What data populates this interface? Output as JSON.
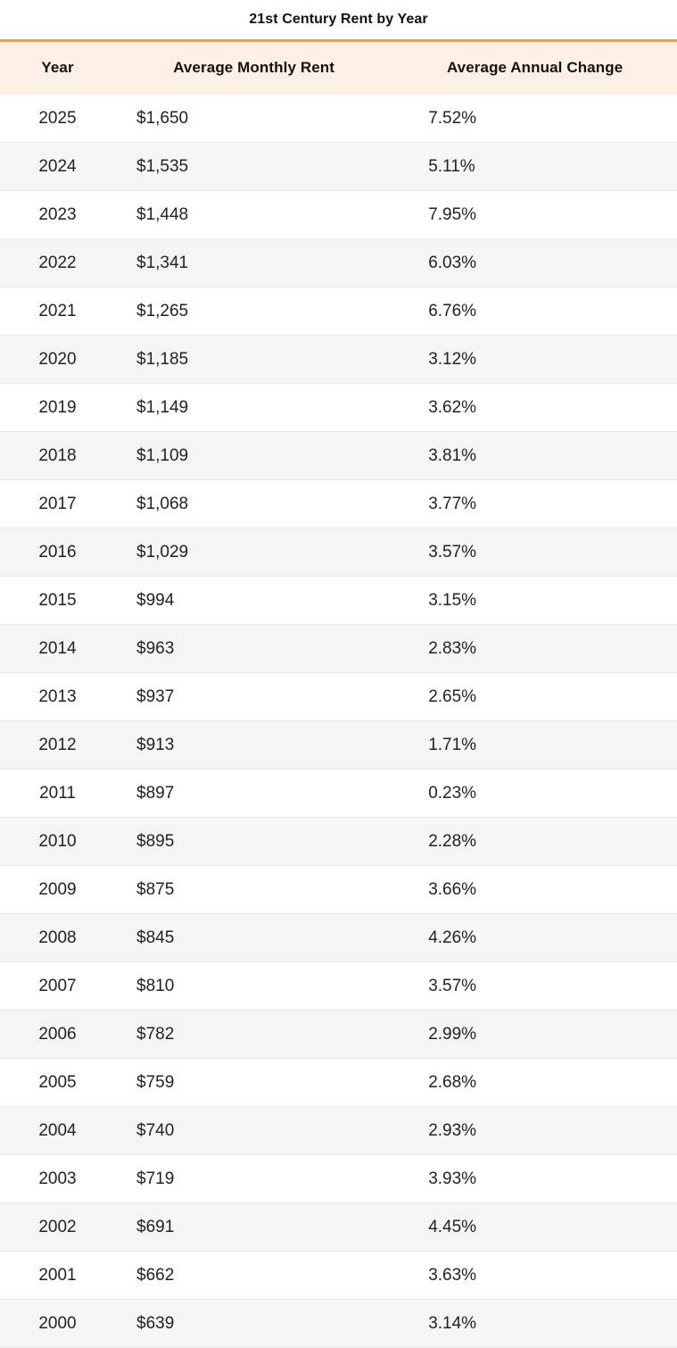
{
  "title": "21st Century Rent by Year",
  "chart_data": {
    "type": "table",
    "title": "21st Century Rent by Year",
    "columns": [
      "Year",
      "Average Monthly Rent",
      "Average Annual Change"
    ],
    "rows": [
      [
        "2025",
        "$1,650",
        "7.52%"
      ],
      [
        "2024",
        "$1,535",
        "5.11%"
      ],
      [
        "2023",
        "$1,448",
        "7.95%"
      ],
      [
        "2022",
        "$1,341",
        "6.03%"
      ],
      [
        "2021",
        "$1,265",
        "6.76%"
      ],
      [
        "2020",
        "$1,185",
        "3.12%"
      ],
      [
        "2019",
        "$1,149",
        "3.62%"
      ],
      [
        "2018",
        "$1,109",
        "3.81%"
      ],
      [
        "2017",
        "$1,068",
        "3.77%"
      ],
      [
        "2016",
        "$1,029",
        "3.57%"
      ],
      [
        "2015",
        "$994",
        "3.15%"
      ],
      [
        "2014",
        "$963",
        "2.83%"
      ],
      [
        "2013",
        "$937",
        "2.65%"
      ],
      [
        "2012",
        "$913",
        "1.71%"
      ],
      [
        "2011",
        "$897",
        "0.23%"
      ],
      [
        "2010",
        "$895",
        "2.28%"
      ],
      [
        "2009",
        "$875",
        "3.66%"
      ],
      [
        "2008",
        "$845",
        "4.26%"
      ],
      [
        "2007",
        "$810",
        "3.57%"
      ],
      [
        "2006",
        "$782",
        "2.99%"
      ],
      [
        "2005",
        "$759",
        "2.68%"
      ],
      [
        "2004",
        "$740",
        "2.93%"
      ],
      [
        "2003",
        "$719",
        "3.93%"
      ],
      [
        "2002",
        "$691",
        "4.45%"
      ],
      [
        "2001",
        "$662",
        "3.63%"
      ],
      [
        "2000",
        "$639",
        "3.14%"
      ]
    ],
    "numeric": {
      "years": [
        2025,
        2024,
        2023,
        2022,
        2021,
        2020,
        2019,
        2018,
        2017,
        2016,
        2015,
        2014,
        2013,
        2012,
        2011,
        2010,
        2009,
        2008,
        2007,
        2006,
        2005,
        2004,
        2003,
        2002,
        2001,
        2000
      ],
      "avg_monthly_rent_usd": [
        1650,
        1535,
        1448,
        1341,
        1265,
        1185,
        1149,
        1109,
        1068,
        1029,
        994,
        963,
        937,
        913,
        897,
        895,
        875,
        845,
        810,
        782,
        759,
        740,
        719,
        691,
        662,
        639
      ],
      "avg_annual_change_pct": [
        7.52,
        5.11,
        7.95,
        6.03,
        6.76,
        3.12,
        3.62,
        3.81,
        3.77,
        3.57,
        3.15,
        2.83,
        2.65,
        1.71,
        0.23,
        2.28,
        3.66,
        4.26,
        3.57,
        2.99,
        2.68,
        2.93,
        3.93,
        4.45,
        3.63,
        3.14
      ]
    },
    "layout": {
      "header_alignment": "center",
      "body_alignment": "left",
      "striped_rows": true
    }
  },
  "colors": {
    "accent_orange": "#F0A14C",
    "header_bg": "#FCF1E4",
    "row_alt_bg": "#F5F5F5",
    "row_border": "#E9E9E9",
    "text": "#232323"
  }
}
